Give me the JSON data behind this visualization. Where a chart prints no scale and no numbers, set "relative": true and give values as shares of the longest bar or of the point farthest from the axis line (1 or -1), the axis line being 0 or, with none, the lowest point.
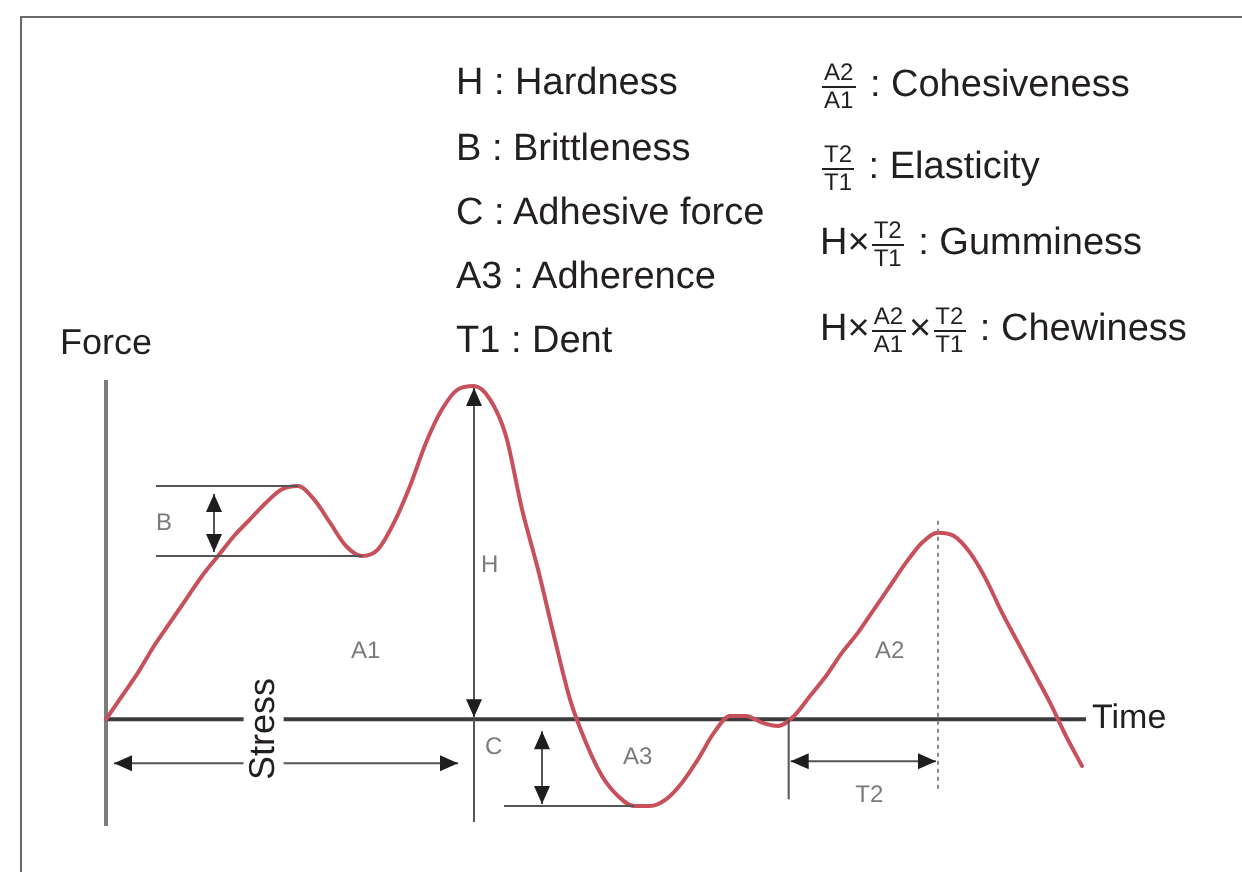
{
  "chart_data": {
    "type": "line",
    "relative": true,
    "xlabel": "Time",
    "ylabel": "Force",
    "categories": [
      null,
      null,
      null,
      null,
      null,
      null,
      null,
      null,
      null,
      null,
      null,
      null,
      null,
      null,
      null,
      null,
      null,
      null,
      null,
      null,
      null,
      null,
      null,
      null,
      null,
      null,
      null,
      null,
      null,
      null,
      null,
      null,
      null,
      null,
      null,
      null,
      null,
      null,
      null,
      null,
      null,
      null,
      null,
      null,
      null,
      null,
      null,
      null,
      null,
      null,
      null,
      null,
      null,
      null,
      null,
      null,
      null,
      null,
      null,
      null,
      null,
      null
    ],
    "values": [
      0,
      0.07,
      0.14,
      0.22,
      0.29,
      0.36,
      0.43,
      0.49,
      0.55,
      0.6,
      0.65,
      0.69,
      0.7,
      0.66,
      0.59,
      0.52,
      0.49,
      0.51,
      0.59,
      0.7,
      0.83,
      0.93,
      0.99,
      1,
      0.96,
      0.85,
      0.63,
      0.45,
      0.25,
      0.06,
      -0.07,
      -0.17,
      -0.23,
      -0.26,
      -0.26,
      -0.24,
      -0.19,
      -0.12,
      -0.04,
      0.01,
      0.01,
      -0.01,
      -0.02,
      0.01,
      0.07,
      0.13,
      0.2,
      0.26,
      0.33,
      0.4,
      0.47,
      0.53,
      0.56,
      0.55,
      0.5,
      0.42,
      0.32,
      0.23,
      0.14,
      0.05,
      -0.05,
      -0.14
    ],
    "color": "#c8505a",
    "marker": "none",
    "line_style": "solid",
    "annotations": [
      "H : Hardness",
      "B : Brittleness",
      "C : Adhesive force",
      "A3 : Adherence",
      "T1 : Dent",
      "$^{A2}$$_{A1}$ : Cohesiveness",
      "$^{T2}$$_{T1}$ : Elasticity",
      "H×$^{T2}$$_{T1}$ : Gumminess",
      "H×$^{A2}$$_{A1}$×$^{T2}$$_{T1}$ : Chewiness",
      "B",
      "H",
      "A1",
      "C",
      "A3",
      "A2",
      "T2",
      "Stress"
    ]
  }
}
